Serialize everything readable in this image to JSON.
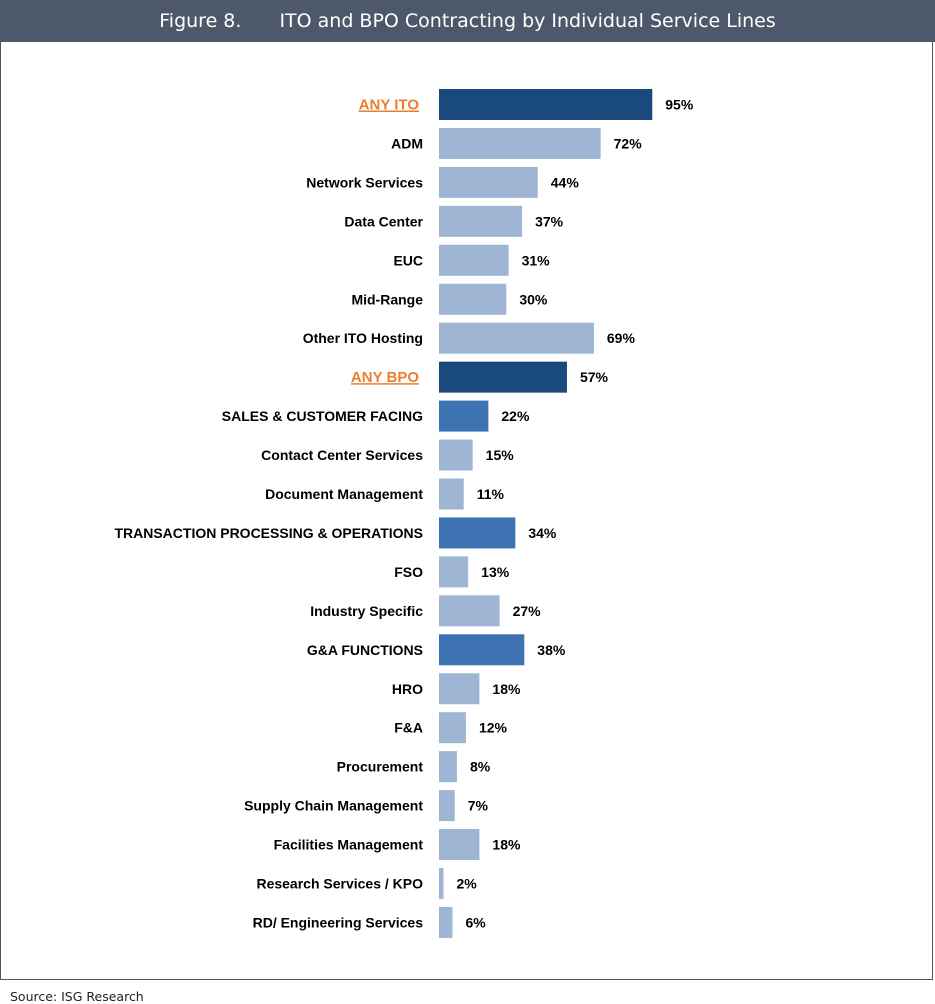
{
  "header": {
    "figure_number": "Figure 8.",
    "title": "ITO and BPO Contracting by Individual Service Lines"
  },
  "source": "Source: ISG Research",
  "colors": {
    "header_bg": "#4d596a",
    "group_total": "#1a497d",
    "bpo_category": "#3d73b3",
    "sub_item": "#9eb6d3",
    "group_label": "#ed7d31"
  },
  "chart_data": {
    "type": "bar",
    "orientation": "horizontal",
    "xlim": [
      0,
      100
    ],
    "grid": false,
    "legend": "none",
    "value_suffix": "%",
    "categories": [
      "ANY ITO",
      "ADM",
      "Network Services",
      "Data Center",
      "EUC",
      "Mid-Range",
      "Other ITO Hosting",
      "ANY BPO",
      "SALES & CUSTOMER FACING",
      "Contact Center Services",
      "Document Management",
      "TRANSACTION PROCESSING & OPERATIONS",
      "FSO",
      "Industry Specific",
      "G&A FUNCTIONS",
      "HRO",
      "F&A",
      "Procurement",
      "Supply Chain Management",
      "Facilities Management",
      "Research Services / KPO",
      "RD/ Engineering Services"
    ],
    "values": [
      95,
      72,
      44,
      37,
      31,
      30,
      69,
      57,
      22,
      15,
      11,
      34,
      13,
      27,
      38,
      18,
      12,
      8,
      7,
      18,
      2,
      6
    ],
    "bar_types": [
      "group_total",
      "sub_item",
      "sub_item",
      "sub_item",
      "sub_item",
      "sub_item",
      "sub_item",
      "group_total",
      "bpo_category",
      "sub_item",
      "sub_item",
      "bpo_category",
      "sub_item",
      "sub_item",
      "bpo_category",
      "sub_item",
      "sub_item",
      "sub_item",
      "sub_item",
      "sub_item",
      "sub_item",
      "sub_item"
    ]
  }
}
